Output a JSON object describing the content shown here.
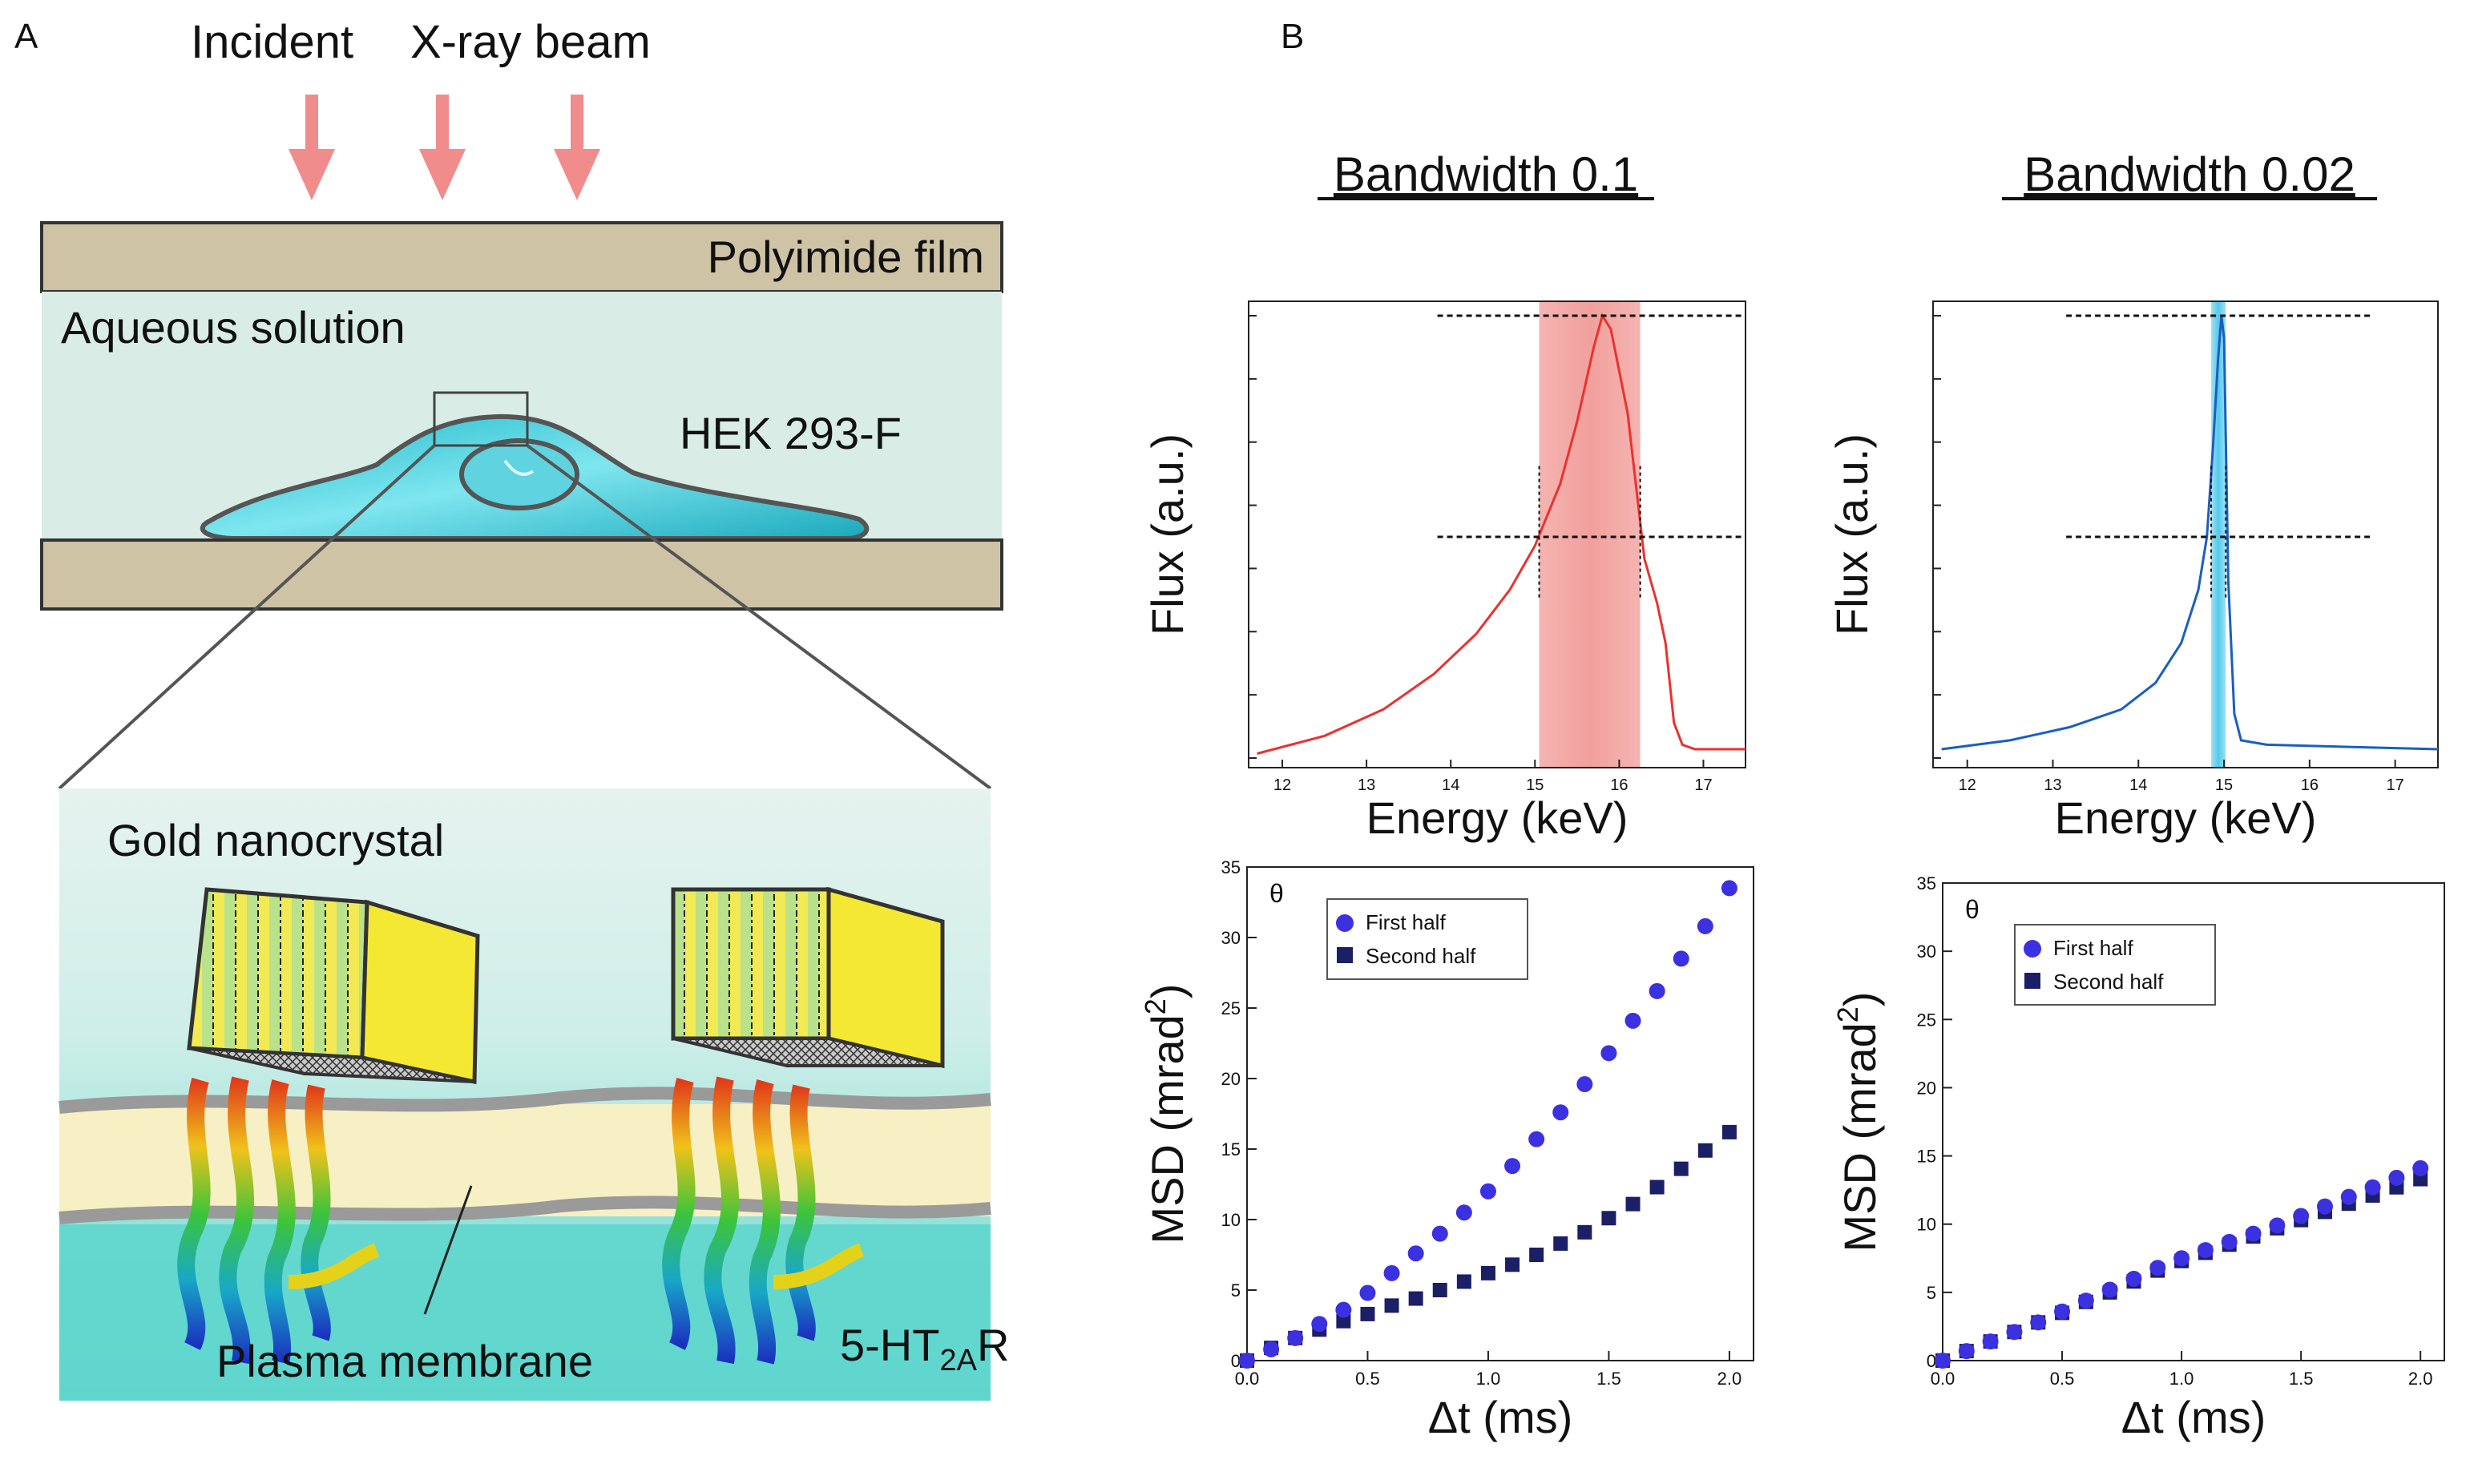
{
  "figure": {
    "panel_a": {
      "label": "A",
      "beam_label_left": "Incident",
      "beam_label_right": "X-ray beam",
      "polyimide": "Polyimide film",
      "aqueous": "Aqueous solution",
      "cell": "HEK 293-F",
      "gold": "Gold nanocrystal",
      "membrane": "Plasma membrane",
      "receptor_main": "5-HT",
      "receptor_sub": "2A",
      "receptor_end": "R",
      "colors": {
        "beam": "#f08c8c",
        "film": "#cfc3a6",
        "solution": "#d9ece6",
        "cell": "#33c6d6",
        "gold": "#f5e832",
        "membrane": "#f7f0c4",
        "cytoplasm": "#5fd6cd"
      }
    },
    "panel_b": {
      "label": "B",
      "col_left_title": "Bandwidth 0.1",
      "col_right_title": "Bandwidth 0.02",
      "colors": {
        "red": "#e8332f",
        "blue": "#1a5fbf",
        "cyan": "#3fc3e6",
        "dot": "#3b31e0",
        "square": "#1a1f66"
      }
    }
  },
  "chart_data": [
    {
      "type": "line",
      "title": "Bandwidth 0.1",
      "xlabel": "Energy (keV)",
      "ylabel": "Flux (a.u.)",
      "xlim": [
        11.6,
        17.5
      ],
      "xticks": [
        "12",
        "13",
        "14",
        "15",
        "16",
        "17"
      ],
      "band_kev": [
        15.05,
        16.25
      ],
      "series": [
        {
          "name": "spectrum",
          "x": [
            11.7,
            12.5,
            13.2,
            13.8,
            14.3,
            14.7,
            15.0,
            15.3,
            15.5,
            15.7,
            15.8,
            15.9,
            16.1,
            16.3,
            16.45,
            16.55,
            16.65,
            16.75,
            16.9,
            17.5
          ],
          "y": [
            0.01,
            0.05,
            0.11,
            0.19,
            0.28,
            0.38,
            0.48,
            0.62,
            0.76,
            0.93,
            1.0,
            0.97,
            0.78,
            0.45,
            0.35,
            0.26,
            0.08,
            0.03,
            0.02,
            0.02
          ]
        }
      ]
    },
    {
      "type": "line",
      "title": "Bandwidth 0.02",
      "xlabel": "Energy (keV)",
      "ylabel": "Flux (a.u.)",
      "xlim": [
        11.6,
        17.5
      ],
      "xticks": [
        "12",
        "13",
        "14",
        "15",
        "16",
        "17"
      ],
      "band_kev": [
        14.85,
        15.02
      ],
      "series": [
        {
          "name": "spectrum",
          "x": [
            11.7,
            12.5,
            13.2,
            13.8,
            14.2,
            14.5,
            14.7,
            14.8,
            14.87,
            14.93,
            14.97,
            15.0,
            15.05,
            15.12,
            15.2,
            15.5,
            17.5
          ],
          "y": [
            0.02,
            0.04,
            0.07,
            0.11,
            0.17,
            0.26,
            0.38,
            0.5,
            0.7,
            0.9,
            1.0,
            0.95,
            0.4,
            0.1,
            0.04,
            0.03,
            0.02
          ]
        }
      ]
    },
    {
      "type": "scatter",
      "xlabel": "Δt (ms)",
      "ylabel_main": "MSD (mrad",
      "ylabel_sup": "2",
      "ylabel_end": ")",
      "corner_label": "θ",
      "xlim": [
        0,
        2.1
      ],
      "ylim": [
        0,
        35
      ],
      "xticks": [
        "0.0",
        "0.5",
        "1.0",
        "1.5",
        "2.0"
      ],
      "yticks": [
        "0",
        "5",
        "10",
        "15",
        "20",
        "25",
        "30",
        "35"
      ],
      "legend": [
        "First half",
        "Second half"
      ],
      "series": [
        {
          "name": "First half",
          "x": [
            0,
            0.1,
            0.2,
            0.3,
            0.4,
            0.5,
            0.6,
            0.7,
            0.8,
            0.9,
            1.0,
            1.1,
            1.2,
            1.3,
            1.4,
            1.5,
            1.6,
            1.7,
            1.8,
            1.9,
            2.0
          ],
          "y": [
            0,
            0.8,
            1.6,
            2.6,
            3.6,
            4.8,
            6.2,
            7.6,
            9.0,
            10.5,
            12.0,
            13.8,
            15.7,
            17.6,
            19.6,
            21.8,
            24.1,
            26.2,
            28.5,
            30.8,
            33.5
          ]
        },
        {
          "name": "Second half",
          "x": [
            0,
            0.1,
            0.2,
            0.3,
            0.4,
            0.5,
            0.6,
            0.7,
            0.8,
            0.9,
            1.0,
            1.1,
            1.2,
            1.3,
            1.4,
            1.5,
            1.6,
            1.7,
            1.8,
            1.9,
            2.0
          ],
          "y": [
            0,
            0.9,
            1.6,
            2.2,
            2.8,
            3.3,
            3.9,
            4.4,
            5.0,
            5.6,
            6.2,
            6.8,
            7.5,
            8.3,
            9.1,
            10.1,
            11.1,
            12.3,
            13.6,
            14.9,
            16.2
          ]
        }
      ]
    },
    {
      "type": "scatter",
      "xlabel": "Δt (ms)",
      "ylabel_main": "MSD (mrad",
      "ylabel_sup": "2",
      "ylabel_end": ")",
      "corner_label": "θ",
      "xlim": [
        0,
        2.1
      ],
      "ylim": [
        0,
        35
      ],
      "xticks": [
        "0.0",
        "0.5",
        "1.0",
        "1.5",
        "2.0"
      ],
      "yticks": [
        "0",
        "5",
        "10",
        "15",
        "20",
        "25",
        "30",
        "35"
      ],
      "legend": [
        "First half",
        "Second half"
      ],
      "series": [
        {
          "name": "First half",
          "x": [
            0,
            0.1,
            0.2,
            0.3,
            0.4,
            0.5,
            0.6,
            0.7,
            0.8,
            0.9,
            1.0,
            1.1,
            1.2,
            1.3,
            1.4,
            1.5,
            1.6,
            1.7,
            1.8,
            1.9,
            2.0
          ],
          "y": [
            0,
            0.7,
            1.4,
            2.1,
            2.8,
            3.6,
            4.4,
            5.2,
            6.0,
            6.8,
            7.5,
            8.1,
            8.7,
            9.3,
            9.9,
            10.6,
            11.3,
            12.0,
            12.7,
            13.4,
            14.1
          ]
        },
        {
          "name": "Second half",
          "x": [
            0,
            0.1,
            0.2,
            0.3,
            0.4,
            0.5,
            0.6,
            0.7,
            0.8,
            0.9,
            1.0,
            1.1,
            1.2,
            1.3,
            1.4,
            1.5,
            1.6,
            1.7,
            1.8,
            1.9,
            2.0
          ],
          "y": [
            0,
            0.7,
            1.4,
            2.1,
            2.8,
            3.5,
            4.3,
            5.0,
            5.8,
            6.6,
            7.3,
            7.9,
            8.5,
            9.1,
            9.7,
            10.3,
            10.9,
            11.5,
            12.1,
            12.7,
            13.3
          ]
        }
      ]
    }
  ]
}
